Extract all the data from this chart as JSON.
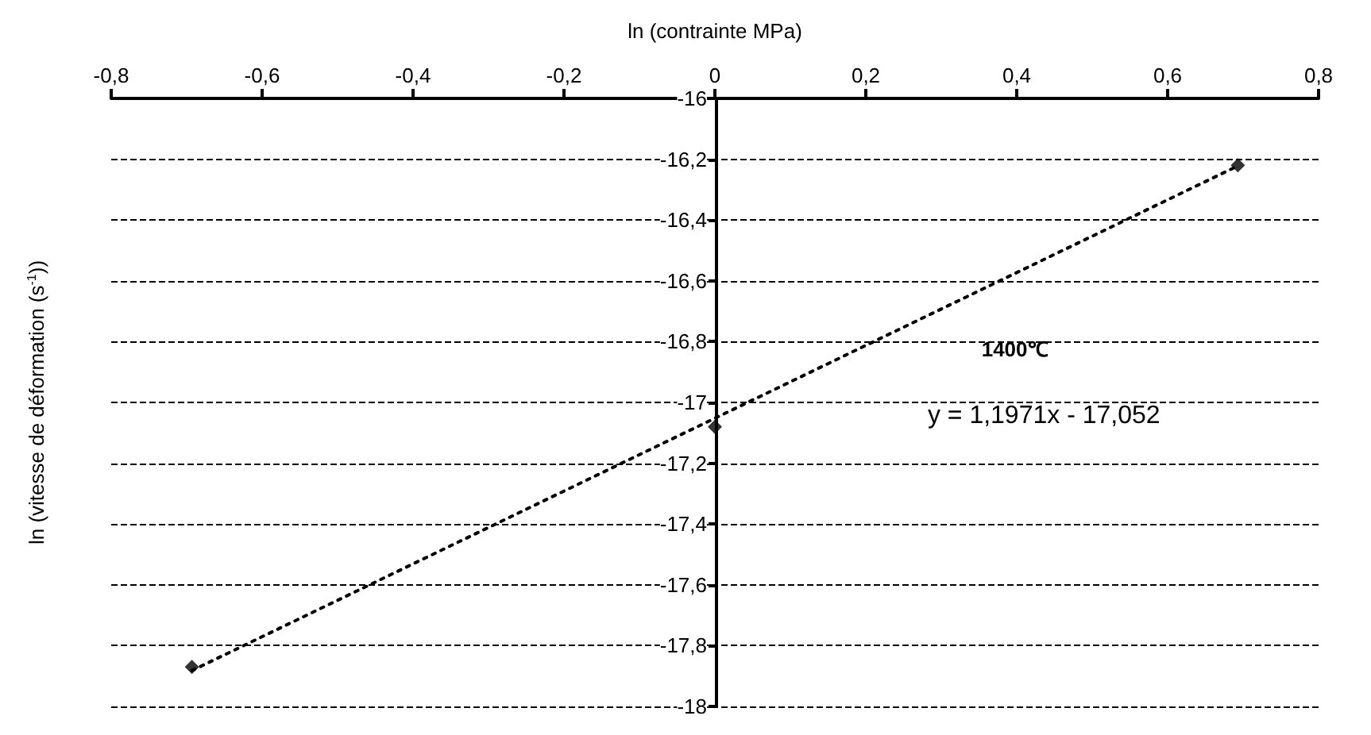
{
  "chart_data": {
    "type": "scatter",
    "xlabel": "ln (contrainte MPa)",
    "ylabel": "ln (vitesse de déformation (s$^{-1}$))",
    "annotations": [
      "1400℃",
      "y = 1,1971x - 17,052"
    ],
    "x": [
      -0.693,
      0,
      0.693
    ],
    "marker": "diamond",
    "grid": "y",
    "series": [
      {
        "color": "#000000",
        "values": [
          -17.87,
          -17.08,
          -16.22
        ]
      },
      {
        "type": "line",
        "color": "#000000",
        "line_style": "dotted",
        "marker": "none",
        "x": [
          -0.693,
          0.693
        ],
        "values": [
          -17.882,
          -16.222
        ]
      }
    ],
    "xlim": [
      -0.8,
      0.8
    ],
    "ylim": [
      -18,
      -16
    ],
    "xticks": [
      {
        "value": -0.8,
        "label": "-0,8"
      },
      {
        "value": -0.6,
        "label": "-0,6"
      },
      {
        "value": -0.4,
        "label": "-0,4"
      },
      {
        "value": -0.2,
        "label": "-0,2"
      },
      0,
      {
        "value": 0.2,
        "label": "0,2"
      },
      {
        "value": 0.4,
        "label": "0,4"
      },
      {
        "value": 0.6,
        "label": "0,6"
      },
      {
        "value": 0.8,
        "label": "0,8"
      }
    ],
    "yticks": [
      -16,
      {
        "value": -16.2,
        "label": "-16,2"
      },
      {
        "value": -16.4,
        "label": "-16,4"
      },
      {
        "value": -16.6,
        "label": "-16,6"
      },
      {
        "value": -16.8,
        "label": "-16,8"
      },
      -17,
      {
        "value": -17.2,
        "label": "-17,2"
      },
      {
        "value": -17.4,
        "label": "-17,4"
      },
      {
        "value": -17.6,
        "label": "-17,6"
      },
      {
        "value": -17.8,
        "label": "-17,8"
      },
      -18
    ]
  }
}
